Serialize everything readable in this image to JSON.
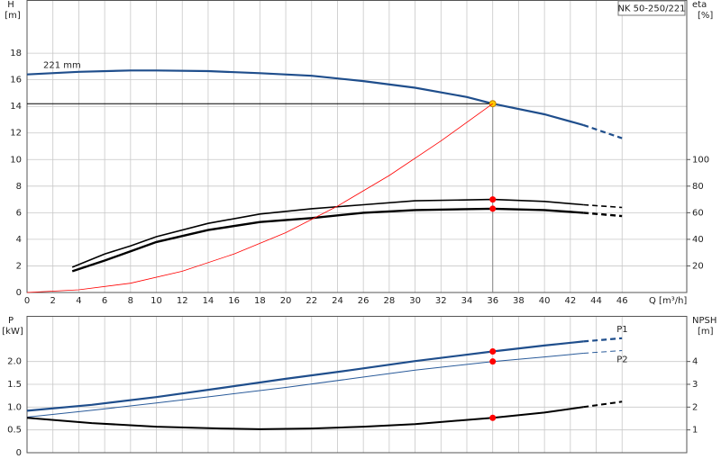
{
  "chart_data": [
    {
      "type": "line",
      "title": "NK 50-250/221",
      "y_label": "H",
      "y_unit": "[m]",
      "y2_label": "eta",
      "y2_unit": "[%]",
      "x_label": "Q [m³/h]",
      "xlim": [
        0,
        51
      ],
      "xticks": [
        0,
        2,
        4,
        6,
        8,
        10,
        12,
        14,
        16,
        18,
        20,
        22,
        24,
        26,
        28,
        30,
        32,
        34,
        36,
        38,
        40,
        42,
        44,
        46
      ],
      "ylim": [
        0,
        22
      ],
      "yticks": [
        0,
        2,
        4,
        6,
        8,
        10,
        12,
        14,
        16,
        18
      ],
      "y2lim": [
        0,
        220
      ],
      "y2ticks": [
        20,
        40,
        60,
        80,
        100
      ],
      "grid": true,
      "show_xtick_labels": true,
      "operating_x": 36,
      "reference_lines": true,
      "series": [
        {
          "name": "221 mm",
          "name_at": "start",
          "color": "#1f4e8c",
          "width": 2.2,
          "dash_from": 43,
          "point_color": "#ffcc00",
          "x": [
            0,
            4,
            8,
            10,
            14,
            18,
            22,
            26,
            30,
            34,
            36,
            40,
            43,
            46
          ],
          "values": [
            16.4,
            16.6,
            16.7,
            16.7,
            16.65,
            16.5,
            16.3,
            15.9,
            15.4,
            14.7,
            14.2,
            13.4,
            12.6,
            11.6
          ]
        },
        {
          "color": "#000000",
          "width": 1.6,
          "axis": "y2",
          "dash_from": 43,
          "point_color": "#ff0000",
          "x": [
            3.5,
            6,
            8,
            10,
            14,
            18,
            22,
            26,
            30,
            36,
            40,
            43,
            46
          ],
          "values": [
            19,
            29,
            35,
            42,
            52,
            59,
            63,
            66,
            69,
            70,
            68.5,
            66,
            64
          ]
        },
        {
          "color": "#000000",
          "width": 2.4,
          "axis": "y2",
          "dash_from": 43,
          "point_color": "#ff0000",
          "x": [
            3.5,
            6,
            8,
            10,
            14,
            18,
            22,
            26,
            30,
            36,
            40,
            43,
            46
          ],
          "values": [
            16,
            24,
            31,
            38,
            47,
            53,
            56,
            60,
            62,
            63,
            62,
            60,
            57.5
          ]
        },
        {
          "color": "#ff0000",
          "width": 0.8,
          "x": [
            0,
            4,
            8,
            12,
            16,
            20,
            24,
            28,
            32,
            36
          ],
          "values": [
            0,
            0.2,
            0.7,
            1.6,
            2.9,
            4.5,
            6.5,
            8.8,
            11.4,
            14.2
          ]
        }
      ]
    },
    {
      "type": "line",
      "y_label": "P",
      "y_unit": "[kW]",
      "y2_label": "NPSH",
      "y2_unit": "[m]",
      "xlim": [
        0,
        51
      ],
      "xticks": [
        0,
        2,
        4,
        6,
        8,
        10,
        12,
        14,
        16,
        18,
        20,
        22,
        24,
        26,
        28,
        30,
        32,
        34,
        36,
        38,
        40,
        42,
        44,
        46
      ],
      "ylim": [
        0,
        3
      ],
      "yticks": [
        0,
        0.5,
        {
          "value": 1,
          "label": "1.0"
        },
        1.5,
        {
          "value": 2,
          "label": "2.0"
        }
      ],
      "y2lim": [
        0,
        6
      ],
      "y2ticks": [
        1,
        2,
        3,
        4
      ],
      "grid": true,
      "show_xtick_labels": false,
      "operating_x": 36,
      "reference_lines": false,
      "series": [
        {
          "name": "P1",
          "name_at": "end",
          "color": "#1f4e8c",
          "width": 2.2,
          "dash_from": 43,
          "point_color": "#ff0000",
          "x": [
            0,
            5,
            10,
            15,
            20,
            25,
            30,
            36,
            40,
            43,
            46
          ],
          "values": [
            0.92,
            1.05,
            1.22,
            1.42,
            1.62,
            1.81,
            2.01,
            2.22,
            2.35,
            2.44,
            2.51
          ]
        },
        {
          "name": "P2",
          "name_at": "end",
          "color": "#2a5b9a",
          "width": 1,
          "dash_from": 43,
          "point_color": "#ff0000",
          "x": [
            0,
            5,
            10,
            15,
            20,
            25,
            30,
            36,
            40,
            43,
            46
          ],
          "values": [
            0.78,
            0.93,
            1.09,
            1.26,
            1.43,
            1.62,
            1.81,
            2.0,
            2.1,
            2.18,
            2.24
          ]
        },
        {
          "color": "#000000",
          "width": 2,
          "axis": "y2",
          "dash_from": 43,
          "point_color": "#ff0000",
          "x": [
            0,
            5,
            10,
            15,
            18,
            22,
            26,
            30,
            36,
            40,
            43,
            46
          ],
          "values": [
            1.53,
            1.3,
            1.14,
            1.06,
            1.03,
            1.06,
            1.14,
            1.25,
            1.53,
            1.76,
            2.0,
            2.24
          ]
        }
      ]
    }
  ]
}
